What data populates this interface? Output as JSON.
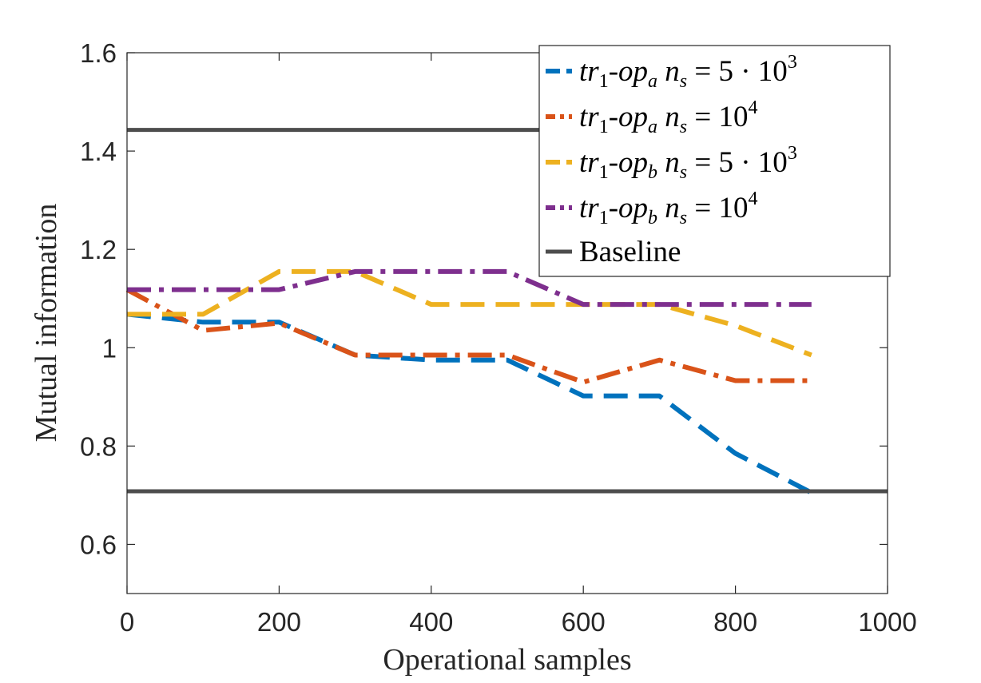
{
  "chart_data": {
    "type": "line",
    "title": "",
    "xlabel": "Operational samples",
    "ylabel": "Mutual information",
    "xlim": [
      0,
      1000
    ],
    "ylim": [
      0.5,
      1.6
    ],
    "xticks": [
      0,
      200,
      400,
      600,
      800,
      1000
    ],
    "xtick_labels": [
      "0",
      "200",
      "400",
      "600",
      "800",
      "1000"
    ],
    "yticks": [
      0.6,
      0.8,
      1.0,
      1.2,
      1.4,
      1.6
    ],
    "ytick_labels": [
      "0.6",
      "0.8",
      "1",
      "1.2",
      "1.4",
      "1.6"
    ],
    "grid": false,
    "legend_position": "top-right",
    "x": [
      0,
      100,
      200,
      300,
      400,
      500,
      600,
      700,
      800,
      900
    ],
    "series": [
      {
        "name": "tr1-opa ns = 5·10^3",
        "legend": {
          "base": "tr",
          "base_sub": "1",
          "mid": "-op",
          "mid_sub": "a",
          "var": "n",
          "var_sub": "s",
          "eq": " = 5 · 10",
          "sup": "3"
        },
        "color": "#0072BD",
        "style": "dashed",
        "values": [
          1.068,
          1.052,
          1.052,
          0.985,
          0.975,
          0.975,
          0.902,
          0.902,
          0.785,
          0.705
        ]
      },
      {
        "name": "tr1-opa ns = 10^4",
        "legend": {
          "base": "tr",
          "base_sub": "1",
          "mid": "-op",
          "mid_sub": "a",
          "var": "n",
          "var_sub": "s",
          "eq": " = 10",
          "sup": "4"
        },
        "color": "#D95319",
        "style": "dashdot",
        "values": [
          1.118,
          1.035,
          1.05,
          0.985,
          0.985,
          0.985,
          0.93,
          0.975,
          0.933,
          0.933
        ]
      },
      {
        "name": "tr1-opb ns = 5·10^3",
        "legend": {
          "base": "tr",
          "base_sub": "1",
          "mid": "-op",
          "mid_sub": "b",
          "var": "n",
          "var_sub": "s",
          "eq": " = 5 · 10",
          "sup": "3"
        },
        "color": "#EDB120",
        "style": "dashed",
        "values": [
          1.068,
          1.068,
          1.155,
          1.155,
          1.088,
          1.088,
          1.088,
          1.088,
          1.045,
          0.985
        ]
      },
      {
        "name": "tr1-opb ns = 10^4",
        "legend": {
          "base": "tr",
          "base_sub": "1",
          "mid": "-op",
          "mid_sub": "b",
          "var": "n",
          "var_sub": "s",
          "eq": " = 10",
          "sup": "4"
        },
        "color": "#7E2F8E",
        "style": "dashdot",
        "values": [
          1.118,
          1.118,
          1.118,
          1.155,
          1.155,
          1.155,
          1.088,
          1.088,
          1.088,
          1.088
        ]
      }
    ],
    "baseline": {
      "name": "Baseline",
      "legend_label": "Baseline",
      "color": "#4D4D4D",
      "style": "solid",
      "values": [
        1.443,
        0.708
      ]
    }
  }
}
